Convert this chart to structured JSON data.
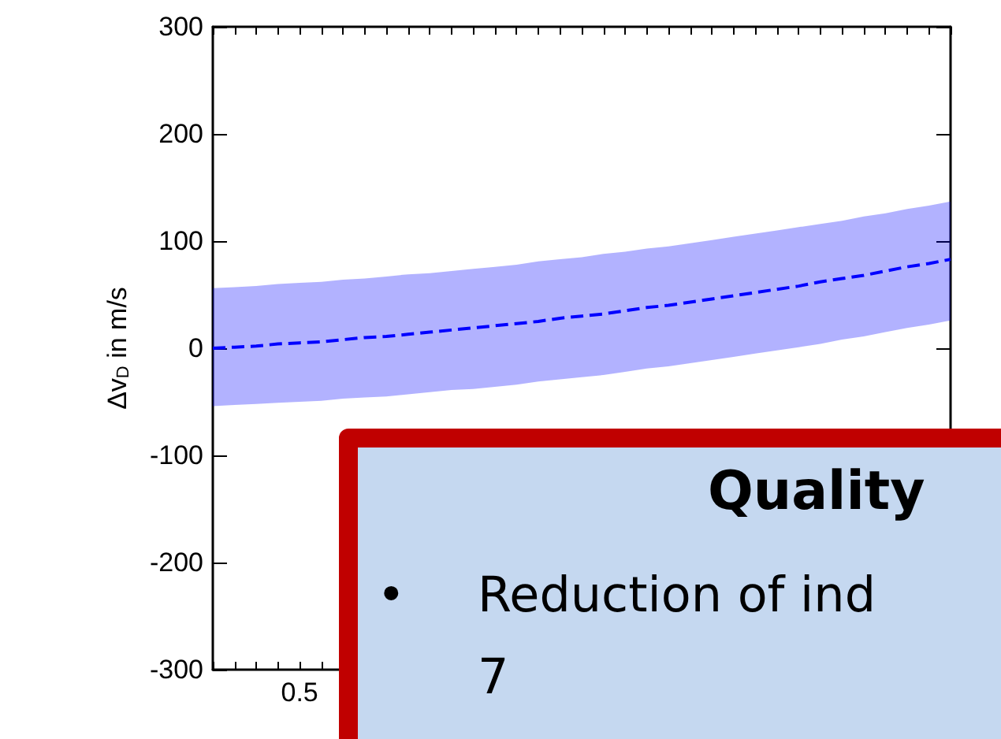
{
  "chart_data": {
    "type": "line",
    "ylabel": "Δv$_{D}$ in m/s",
    "categories": [
      null,
      null,
      null,
      null,
      "0.5",
      null,
      null,
      null,
      null,
      null,
      null,
      null,
      null,
      null,
      null,
      null,
      null,
      null,
      null,
      null,
      null,
      null,
      null,
      null,
      null,
      null,
      null,
      null,
      null,
      null,
      null,
      null,
      null,
      null,
      null
    ],
    "series": [
      {
        "color": "#0000ff",
        "line_style": "dashed",
        "values": [
          0,
          1,
          2,
          4,
          5,
          6,
          8,
          10,
          11,
          13,
          15,
          17,
          19,
          21,
          23,
          25,
          28,
          30,
          32,
          35,
          38,
          40,
          43,
          46,
          49,
          52,
          55,
          58,
          62,
          65,
          68,
          72,
          76,
          79,
          83
        ],
        "lower": [
          -54,
          -53,
          -52,
          -51,
          -50,
          -49,
          -47,
          -46,
          -45,
          -43,
          -41,
          -39,
          -38,
          -36,
          -34,
          -31,
          -29,
          -27,
          -25,
          -22,
          -19,
          -17,
          -14,
          -11,
          -8,
          -5,
          -2,
          1,
          4,
          8,
          11,
          15,
          19,
          22,
          26
        ],
        "upper": [
          56,
          57,
          58,
          60,
          61,
          62,
          64,
          65,
          67,
          69,
          70,
          72,
          74,
          76,
          78,
          81,
          83,
          85,
          88,
          90,
          93,
          95,
          98,
          101,
          104,
          107,
          110,
          113,
          116,
          119,
          123,
          126,
          130,
          133,
          137
        ]
      }
    ],
    "ylim": [
      -300,
      300
    ],
    "yticks": [
      -300,
      -200,
      -100,
      0,
      100,
      200,
      300
    ],
    "grid": false,
    "marker": "none",
    "annotations": [
      "Quality",
      "•",
      "Reduction of ind",
      "7"
    ]
  }
}
